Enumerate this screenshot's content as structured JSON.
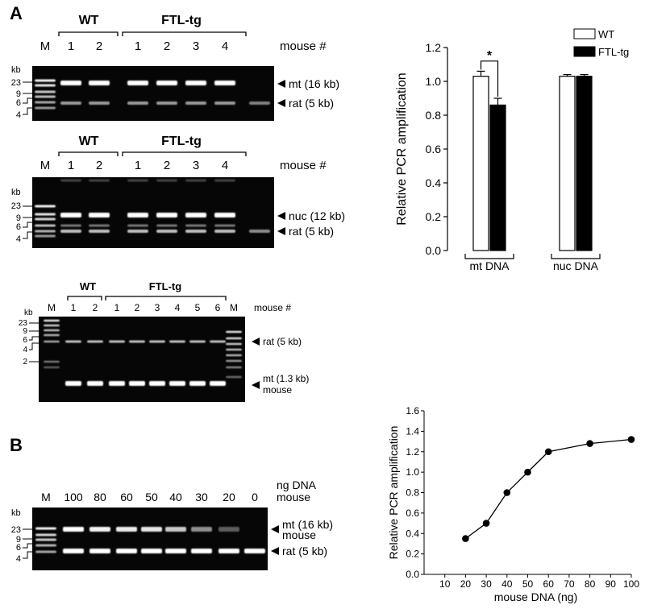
{
  "panel_a_label": "A",
  "panel_b_label": "B",
  "gel1": {
    "groups": [
      "WT",
      "FTL-tg"
    ],
    "lanes": [
      "M",
      "1",
      "2",
      "1",
      "2",
      "3",
      "4"
    ],
    "mouse_label": "mouse #",
    "kb_label": "kb",
    "markers": [
      "23",
      "9",
      "6",
      "4"
    ],
    "band_labels": [
      "mt (16 kb)",
      "rat (5 kb)"
    ]
  },
  "gel2": {
    "groups": [
      "WT",
      "FTL-tg"
    ],
    "lanes": [
      "M",
      "1",
      "2",
      "1",
      "2",
      "3",
      "4"
    ],
    "mouse_label": "mouse #",
    "kb_label": "kb",
    "markers": [
      "23",
      "9",
      "6",
      "4"
    ],
    "band_labels": [
      "nuc (12 kb)",
      "rat (5 kb)"
    ]
  },
  "gel3": {
    "groups": [
      "WT",
      "FTL-tg"
    ],
    "lanes": [
      "M",
      "1",
      "2",
      "1",
      "2",
      "3",
      "4",
      "5",
      "6",
      "M"
    ],
    "mouse_label": "mouse #",
    "kb_label": "kb",
    "markers": [
      "23",
      "9",
      "6",
      "4",
      "2"
    ],
    "band_labels": [
      "rat (5 kb)",
      "mt (1.3 kb)",
      "mouse"
    ]
  },
  "gelB": {
    "lanes": [
      "M",
      "100",
      "80",
      "60",
      "50",
      "40",
      "30",
      "20",
      "0"
    ],
    "ng_label_line1": "ng DNA",
    "ng_label_line2": "mouse",
    "kb_label": "kb",
    "markers": [
      "23",
      "9",
      "6",
      "4"
    ],
    "band_labels": [
      "mt (16 kb)",
      "mouse",
      "rat (5 kb)"
    ],
    "mt_intensity": [
      1.0,
      0.95,
      0.92,
      0.9,
      0.78,
      0.55,
      0.35,
      0.0
    ]
  },
  "chart_data": [
    {
      "type": "bar",
      "categories": [
        "mt DNA",
        "nuc DNA"
      ],
      "series": [
        {
          "name": "WT",
          "values": [
            1.03,
            1.03
          ],
          "errors": [
            0.03,
            0.01
          ],
          "color": "#ffffff"
        },
        {
          "name": "FTL-tg",
          "values": [
            0.86,
            1.03
          ],
          "errors": [
            0.04,
            0.01
          ],
          "color": "#000000"
        }
      ],
      "ylabel": "Relative PCR amplification",
      "ylim": [
        0,
        1.2
      ],
      "yticks": [
        "0.0",
        "0.2",
        "0.4",
        "0.6",
        "0.8",
        "1.0",
        "1.2"
      ],
      "significance": "*",
      "legend": "top-right"
    },
    {
      "type": "line",
      "x": [
        20,
        30,
        40,
        50,
        60,
        80,
        100
      ],
      "y": [
        0.35,
        0.5,
        0.8,
        1.0,
        1.2,
        1.28,
        1.32
      ],
      "xlabel": "mouse DNA (ng)",
      "ylabel": "Relative PCR amplification",
      "xlim": [
        0,
        100
      ],
      "ylim": [
        0,
        1.6
      ],
      "xticks": [
        "10",
        "20",
        "30",
        "40",
        "50",
        "60",
        "70",
        "80",
        "90",
        "100"
      ],
      "yticks": [
        "0.0",
        "0.2",
        "0.4",
        "0.6",
        "0.8",
        "1.0",
        "1.2",
        "1.4",
        "1.6"
      ]
    }
  ]
}
